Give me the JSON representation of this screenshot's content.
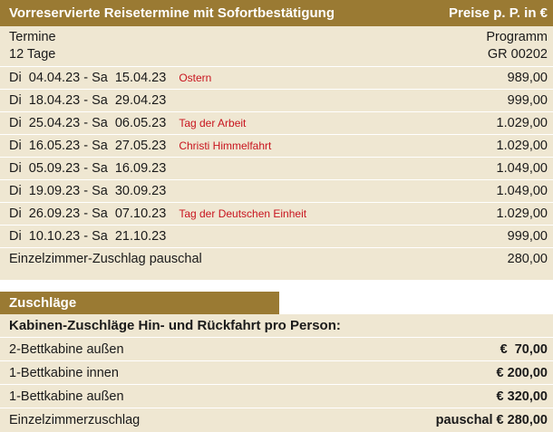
{
  "section1": {
    "title": "Vorreservierte Reisetermine mit Sofortbestätigung",
    "price_note": "Preise p. P. in €",
    "col_left": "Termine",
    "col_left_sub": "12 Tage",
    "col_right": "Programm",
    "col_right_sub": "GR 00202",
    "rows": [
      {
        "dates": "Di  04.04.23 - Sa  15.04.23",
        "note": "Ostern",
        "price": "989,00"
      },
      {
        "dates": "Di  18.04.23 - Sa  29.04.23",
        "note": "",
        "price": "999,00"
      },
      {
        "dates": "Di  25.04.23 - Sa  06.05.23",
        "note": "Tag der Arbeit",
        "price": "1.029,00"
      },
      {
        "dates": "Di  16.05.23 - Sa  27.05.23",
        "note": "Christi Himmelfahrt",
        "price": "1.029,00"
      },
      {
        "dates": "Di  05.09.23 - Sa  16.09.23",
        "note": "",
        "price": "1.049,00"
      },
      {
        "dates": "Di  19.09.23 - Sa  30.09.23",
        "note": "",
        "price": "1.049,00"
      },
      {
        "dates": "Di  26.09.23 - Sa  07.10.23",
        "note": "Tag der Deutschen Einheit",
        "price": "1.029,00"
      },
      {
        "dates": "Di  10.10.23 - Sa  21.10.23",
        "note": "",
        "price": "999,00"
      }
    ],
    "single_label": "Einzelzimmer-Zuschlag pauschal",
    "single_price": "280,00"
  },
  "section2": {
    "title": "Zuschläge",
    "subtitle": "Kabinen-Zuschläge Hin- und Rückfahrt pro Person:",
    "rows": [
      {
        "label": "2-Bettkabine außen",
        "value": "€  70,00"
      },
      {
        "label": "1-Bettkabine innen",
        "value": "€ 200,00"
      },
      {
        "label": "1-Bettkabine außen",
        "value": "€ 320,00"
      },
      {
        "label": "Einzelzimmerzuschlag",
        "value": "pauschal € 280,00"
      }
    ]
  },
  "colors": {
    "header": "#9a7a33",
    "background": "#efe7d2",
    "note": "#c8141e"
  }
}
